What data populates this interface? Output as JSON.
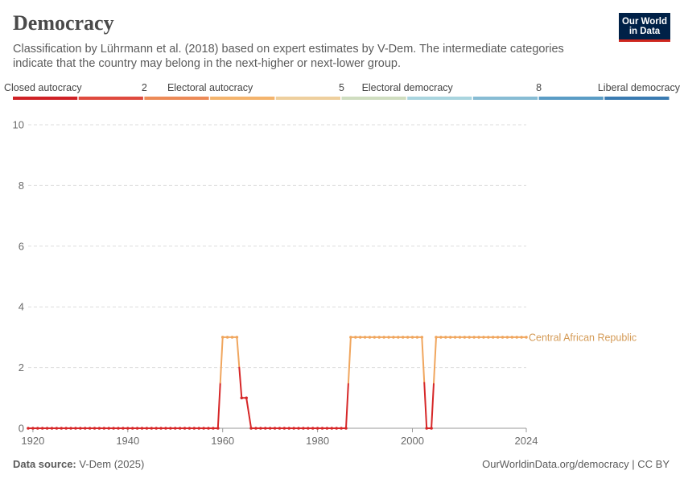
{
  "header": {
    "title": "Democracy",
    "subtitle": "Classification by Lührmann et al. (2018) based on expert estimates by V-Dem. The intermediate categories indicate that the country may belong in the next-higher or next-lower group.",
    "logo_line1": "Our World",
    "logo_line2": "in Data"
  },
  "footer": {
    "source_label": "Data source:",
    "source_value": "V-Dem (2025)",
    "attribution": "OurWorldinData.org/democracy | CC BY"
  },
  "legend": {
    "labels": [
      {
        "text": "Closed autocracy",
        "value": 0
      },
      {
        "text": "2",
        "value": 2
      },
      {
        "text": "Electoral autocracy",
        "value": 3
      },
      {
        "text": "5",
        "value": 5
      },
      {
        "text": "Electoral democracy",
        "value": 6
      },
      {
        "text": "8",
        "value": 8
      },
      {
        "text": "Liberal democracy",
        "value": 9
      }
    ],
    "colors": [
      "#cf2126",
      "#df4a3e",
      "#ec8a57",
      "#f4b46d",
      "#eecf9d",
      "#cfddbf",
      "#a9d5df",
      "#87bcd4",
      "#5a9cc5",
      "#3a7bb2"
    ]
  },
  "colors": {
    "low": "#d62728",
    "high": "#f0a65e",
    "grid": "#dddddd",
    "axis_text": "#6b6b6b",
    "series_label": "#d49a55"
  },
  "chart_data": {
    "type": "line",
    "title": "Democracy",
    "xlabel": "",
    "ylabel": "",
    "xlim": [
      1919,
      2024
    ],
    "ylim": [
      0,
      10
    ],
    "x_ticks": [
      1920,
      1940,
      1960,
      1980,
      2000,
      2024
    ],
    "y_ticks": [
      0,
      2,
      4,
      6,
      8,
      10
    ],
    "series": [
      {
        "name": "Central African Republic",
        "points": [
          [
            1919,
            0
          ],
          [
            1920,
            0
          ],
          [
            1921,
            0
          ],
          [
            1922,
            0
          ],
          [
            1923,
            0
          ],
          [
            1924,
            0
          ],
          [
            1925,
            0
          ],
          [
            1926,
            0
          ],
          [
            1927,
            0
          ],
          [
            1928,
            0
          ],
          [
            1929,
            0
          ],
          [
            1930,
            0
          ],
          [
            1931,
            0
          ],
          [
            1932,
            0
          ],
          [
            1933,
            0
          ],
          [
            1934,
            0
          ],
          [
            1935,
            0
          ],
          [
            1936,
            0
          ],
          [
            1937,
            0
          ],
          [
            1938,
            0
          ],
          [
            1939,
            0
          ],
          [
            1940,
            0
          ],
          [
            1941,
            0
          ],
          [
            1942,
            0
          ],
          [
            1943,
            0
          ],
          [
            1944,
            0
          ],
          [
            1945,
            0
          ],
          [
            1946,
            0
          ],
          [
            1947,
            0
          ],
          [
            1948,
            0
          ],
          [
            1949,
            0
          ],
          [
            1950,
            0
          ],
          [
            1951,
            0
          ],
          [
            1952,
            0
          ],
          [
            1953,
            0
          ],
          [
            1954,
            0
          ],
          [
            1955,
            0
          ],
          [
            1956,
            0
          ],
          [
            1957,
            0
          ],
          [
            1958,
            0
          ],
          [
            1959,
            0
          ],
          [
            1960,
            3
          ],
          [
            1961,
            3
          ],
          [
            1962,
            3
          ],
          [
            1963,
            3
          ],
          [
            1964,
            1
          ],
          [
            1965,
            1
          ],
          [
            1966,
            0
          ],
          [
            1967,
            0
          ],
          [
            1968,
            0
          ],
          [
            1969,
            0
          ],
          [
            1970,
            0
          ],
          [
            1971,
            0
          ],
          [
            1972,
            0
          ],
          [
            1973,
            0
          ],
          [
            1974,
            0
          ],
          [
            1975,
            0
          ],
          [
            1976,
            0
          ],
          [
            1977,
            0
          ],
          [
            1978,
            0
          ],
          [
            1979,
            0
          ],
          [
            1980,
            0
          ],
          [
            1981,
            0
          ],
          [
            1982,
            0
          ],
          [
            1983,
            0
          ],
          [
            1984,
            0
          ],
          [
            1985,
            0
          ],
          [
            1986,
            0
          ],
          [
            1987,
            3
          ],
          [
            1988,
            3
          ],
          [
            1989,
            3
          ],
          [
            1990,
            3
          ],
          [
            1991,
            3
          ],
          [
            1992,
            3
          ],
          [
            1993,
            3
          ],
          [
            1994,
            3
          ],
          [
            1995,
            3
          ],
          [
            1996,
            3
          ],
          [
            1997,
            3
          ],
          [
            1998,
            3
          ],
          [
            1999,
            3
          ],
          [
            2000,
            3
          ],
          [
            2001,
            3
          ],
          [
            2002,
            3
          ],
          [
            2003,
            0
          ],
          [
            2004,
            0
          ],
          [
            2005,
            3
          ],
          [
            2006,
            3
          ],
          [
            2007,
            3
          ],
          [
            2008,
            3
          ],
          [
            2009,
            3
          ],
          [
            2010,
            3
          ],
          [
            2011,
            3
          ],
          [
            2012,
            3
          ],
          [
            2013,
            3
          ],
          [
            2014,
            3
          ],
          [
            2015,
            3
          ],
          [
            2016,
            3
          ],
          [
            2017,
            3
          ],
          [
            2018,
            3
          ],
          [
            2019,
            3
          ],
          [
            2020,
            3
          ],
          [
            2021,
            3
          ],
          [
            2022,
            3
          ],
          [
            2023,
            3
          ],
          [
            2024,
            3
          ]
        ]
      }
    ],
    "legend_position": "top"
  }
}
